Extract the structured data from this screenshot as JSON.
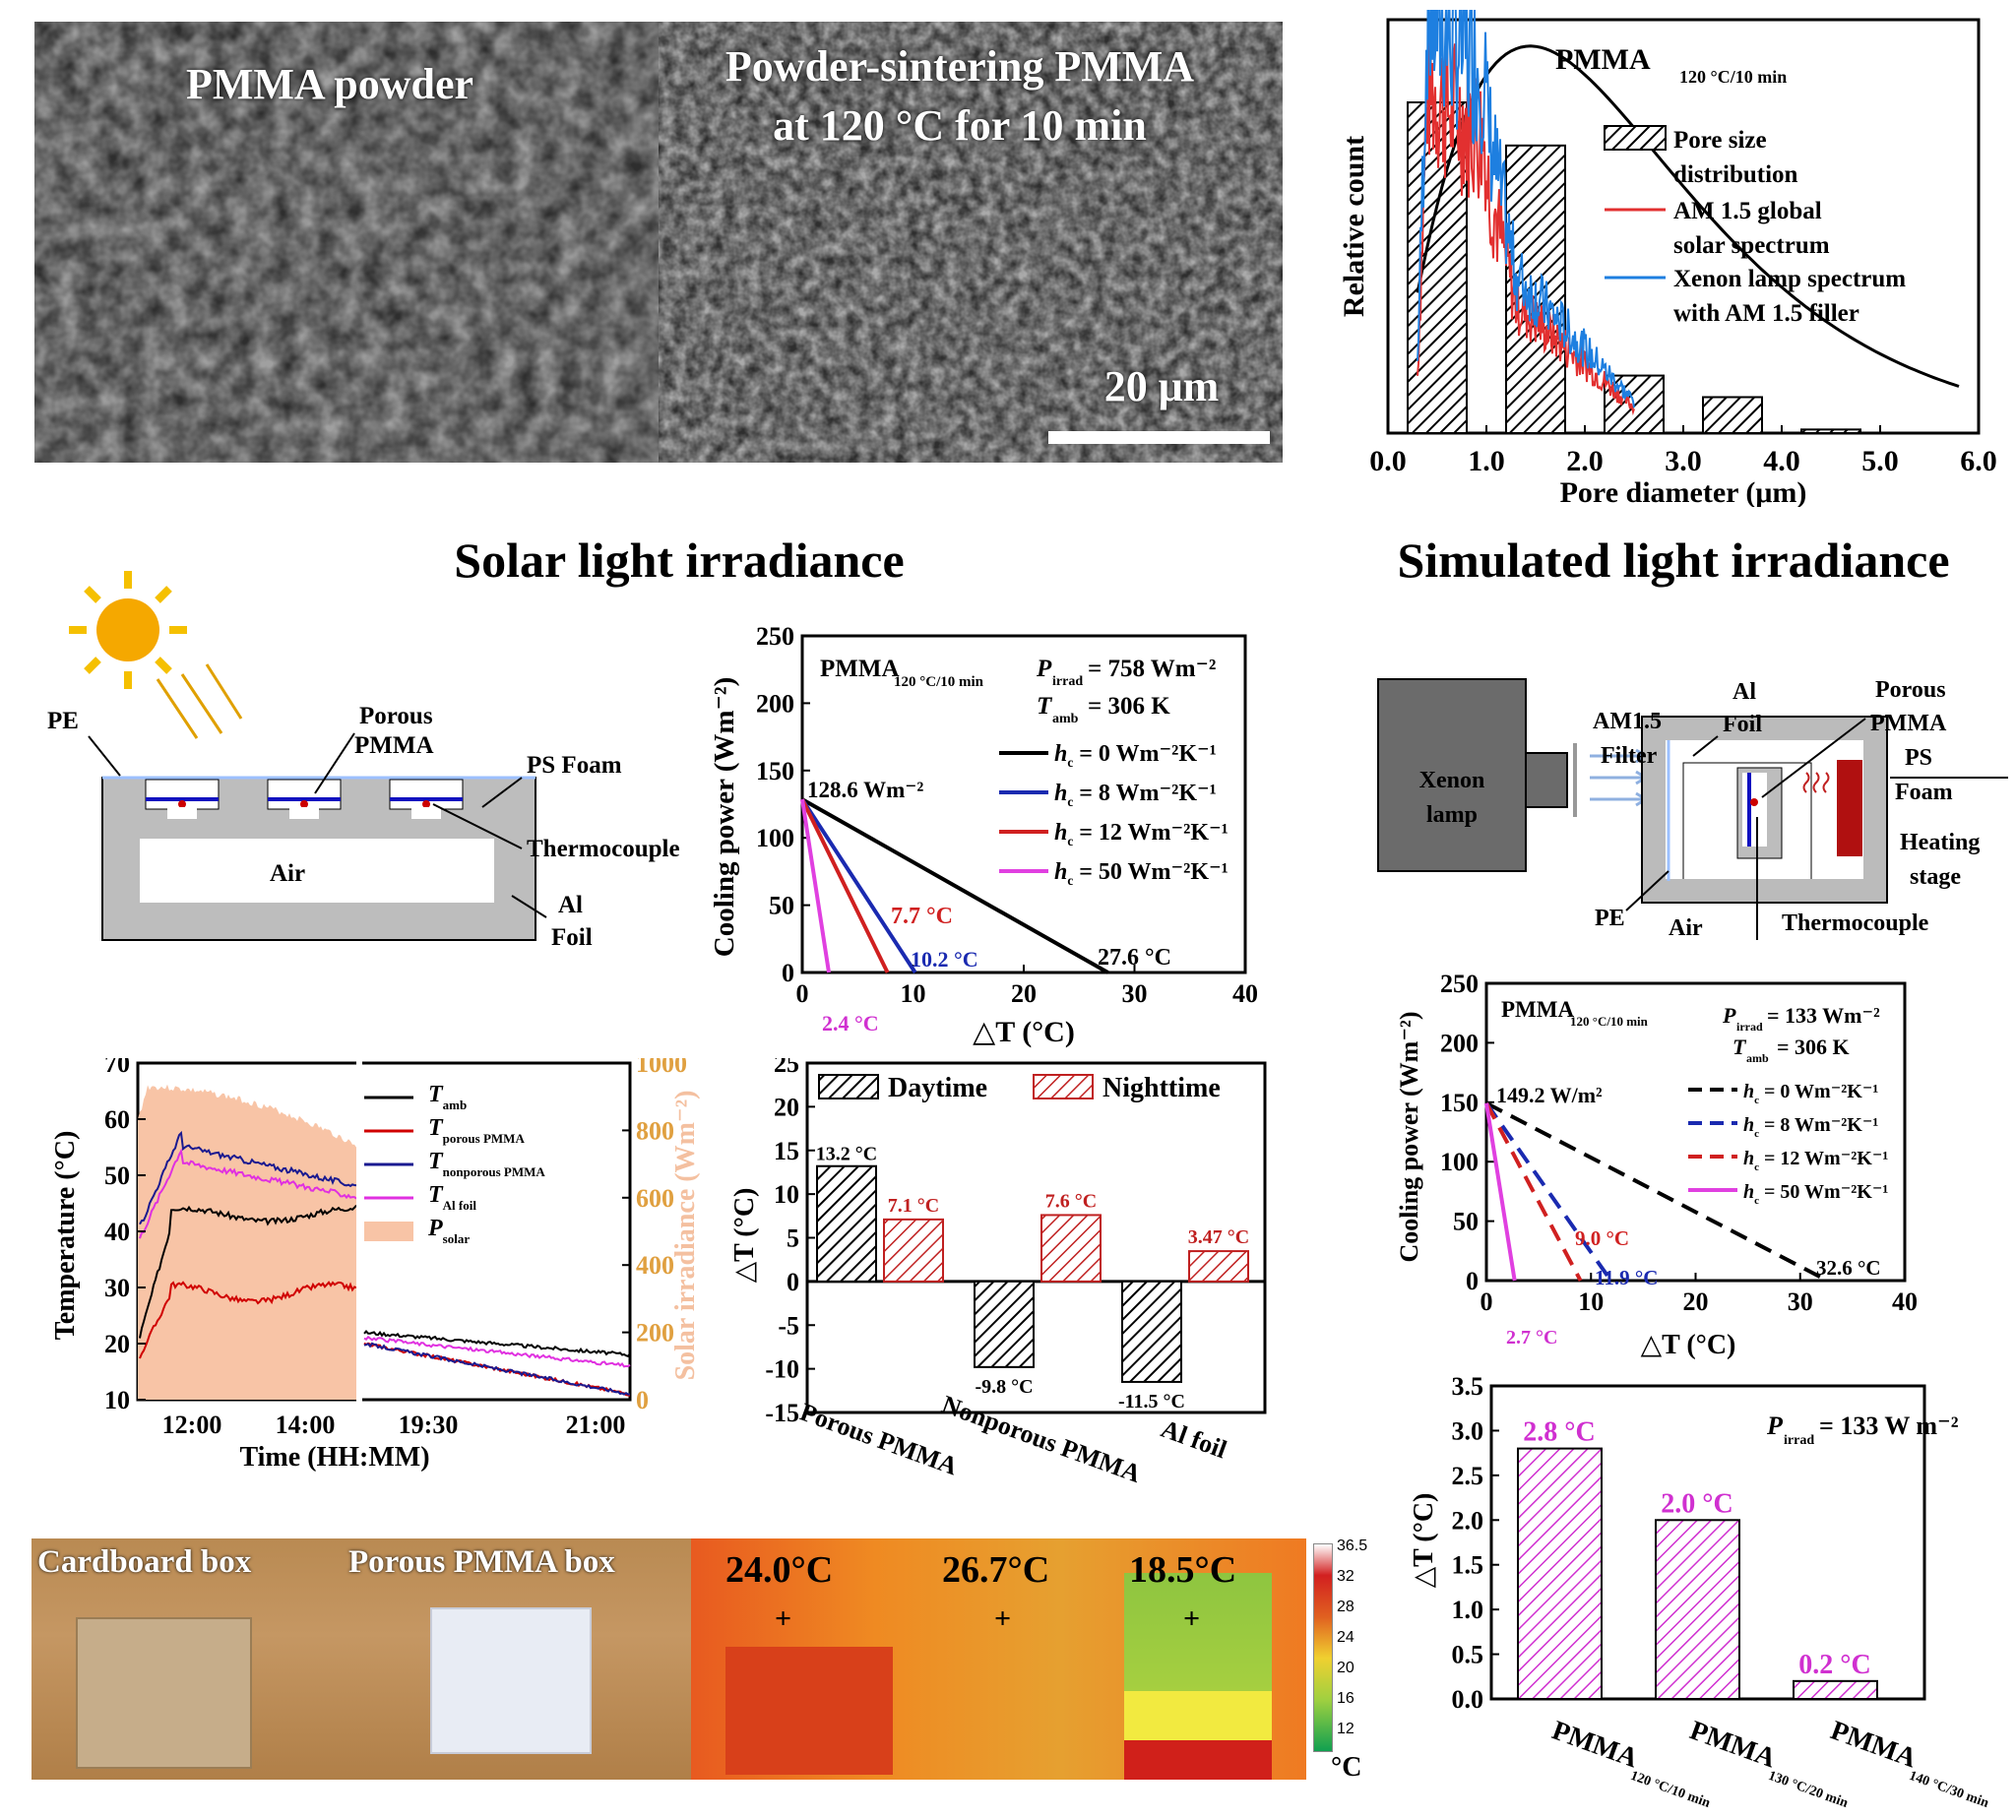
{
  "sem": {
    "left_label": "PMMA powder",
    "right_label_1": "Powder-sintering PMMA",
    "right_label_2": "at 120 °C for 10 min",
    "scale": "20 μm"
  },
  "headings": {
    "solar": "Solar light irradiance",
    "simulated": "Simulated light irradiance"
  },
  "pore_chart": {
    "title_main": "PMMA",
    "title_sub": "120 °C/10 min",
    "ylabel": "Relative count",
    "xlabel": "Pore diameter (μm)",
    "xticks": [
      "0.0",
      "1.0",
      "2.0",
      "3.0",
      "4.0",
      "5.0",
      "6.0"
    ],
    "legend": [
      "Pore size",
      "distribution",
      "AM 1.5 global",
      "solar spectrum",
      "Xenon lamp spectrum",
      "with AM 1.5 filler"
    ],
    "colors": {
      "am15": "#e23030",
      "xenon": "#1e7fe0"
    }
  },
  "solar_schematic": {
    "pe": "PE",
    "porous": "Porous",
    "pmma": "PMMA",
    "ps_foam": "PS Foam",
    "thermocouple": "Thermocouple",
    "air": "Air",
    "al": "Al",
    "foil": "Foil"
  },
  "cooling_solar": {
    "ylabel": "Cooling power (Wm⁻²)",
    "xlabel": "△T (°C)",
    "yticks": [
      "0",
      "50",
      "100",
      "150",
      "200",
      "250"
    ],
    "xticks": [
      "0",
      "10",
      "20",
      "30",
      "40"
    ],
    "sample": "PMMA",
    "sample_sub": "120 °C/10 min",
    "p_irrad": "P",
    "p_irrad_sub": "irrad",
    "p_irrad_val": "= 758 Wm⁻²",
    "t_amb": "T",
    "t_amb_sub": "amb",
    "t_amb_val": "= 306 K",
    "legend": [
      "h_c = 0 Wm⁻²K⁻¹",
      "h_c = 8 Wm⁻²K⁻¹",
      "h_c = 12 Wm⁻²K⁻¹",
      "h_c = 50 Wm⁻²K⁻¹"
    ],
    "peak": "128.6 Wm⁻²",
    "ann": [
      "27.6 °C",
      "10.2 °C",
      "7.7 °C",
      "2.4 °C"
    ]
  },
  "temp_chart": {
    "ylabel": "Temperature (°C)",
    "y2label": "Solar irradiance (Wm⁻²)",
    "xlabel": "Time (HH:MM)",
    "yticks": [
      "10",
      "20",
      "30",
      "40",
      "50",
      "60",
      "70"
    ],
    "y2ticks": [
      "0",
      "200",
      "400",
      "600",
      "800",
      "1000"
    ],
    "xticks": [
      "12:00",
      "14:00",
      "19:30",
      "21:00"
    ],
    "legend": [
      "T",
      "amb",
      "T",
      "porous PMMA",
      "T",
      "nonporous PMMA",
      "T",
      "Al foil",
      "P",
      "solar"
    ]
  },
  "dt_bar": {
    "ylabel": "△T (°C)",
    "yticks": [
      "25",
      "20",
      "15",
      "10",
      "5",
      "0",
      "-5",
      "-10",
      "-15"
    ],
    "legend": [
      "Daytime",
      "Nighttime"
    ],
    "categories": [
      "Porous PMMA",
      "Nonporous PMMA",
      "Al foil"
    ],
    "labels_day": [
      "13.2 °C",
      "-9.8 °C",
      "-11.5 °C"
    ],
    "labels_night": [
      "7.1 °C",
      "7.6 °C",
      "3.47 °C"
    ]
  },
  "sim_schematic": {
    "xenon": "Xenon",
    "lamp": "lamp",
    "am15": "AM1.5",
    "filter": "Filter",
    "al": "Al",
    "foil": "Foil",
    "porous": "Porous",
    "pmma": "PMMA",
    "ps": "PS",
    "foam": "Foam",
    "heating": "Heating",
    "stage": "stage",
    "pe": "PE",
    "air": "Air",
    "thermocouple": "Thermocouple"
  },
  "cooling_sim": {
    "ylabel": "Cooling power (Wm⁻²)",
    "xlabel": "△T (°C)",
    "yticks": [
      "0",
      "50",
      "100",
      "150",
      "200",
      "250"
    ],
    "xticks": [
      "0",
      "10",
      "20",
      "30",
      "40"
    ],
    "sample": "PMMA",
    "sample_sub": "120 °C/10 min",
    "p_irrad": "P",
    "p_irrad_sub": "irrad",
    "p_irrad_val": "= 133 Wm⁻²",
    "t_amb": "T",
    "t_amb_sub": "amb",
    "t_amb_val": "= 306 K",
    "legend": [
      "h_c = 0 Wm⁻²K⁻¹",
      "h_c = 8 Wm⁻²K⁻¹",
      "h_c = 12 Wm⁻²K⁻¹",
      "h_c = 50 Wm⁻²K⁻¹"
    ],
    "peak": "149.2 W/m²",
    "ann": [
      "32.6 °C",
      "11.9 °C",
      "9.0 °C",
      "2.7 °C"
    ]
  },
  "sim_bar": {
    "ylabel": "△T (°C)",
    "yticks": [
      "0.0",
      "0.5",
      "1.0",
      "1.5",
      "2.0",
      "2.5",
      "3.0",
      "3.5"
    ],
    "p_irrad": "P",
    "p_irrad_sub": "irrad",
    "p_irrad_val": "= 133 W m⁻²",
    "labels": [
      "2.8 °C",
      "2.0 °C",
      "0.2 °C"
    ],
    "categories": [
      "PMMA",
      "PMMA",
      "PMMA"
    ],
    "cat_subs": [
      "120 °C/10 min",
      "130 °C/20 min",
      "140 °C/30 min"
    ]
  },
  "photo": {
    "cardboard": "Cardboard box",
    "porous_box": "Porous PMMA box",
    "temps": [
      "24.0°C",
      "26.7°C",
      "18.5°C"
    ],
    "scale_ticks": [
      "36.5",
      "32",
      "28",
      "24",
      "20",
      "16",
      "12"
    ],
    "unit": "°C"
  },
  "chart_data": [
    {
      "type": "bar",
      "title": "",
      "xlabel": "Pore diameter (μm)",
      "ylabel": "Relative count",
      "xlim": [
        0,
        6
      ],
      "categories": [
        "0.5",
        "1.5",
        "2.5",
        "3.5",
        "4.5"
      ],
      "values": [
        0.92,
        0.8,
        0.16,
        0.1,
        0.01
      ]
    },
    {
      "type": "line",
      "title": "",
      "xlabel": "△T (°C)",
      "ylabel": "Cooling power (Wm⁻²)",
      "xlim": [
        0,
        40
      ],
      "ylim": [
        0,
        250
      ],
      "series": [
        {
          "name": "h_c = 0 Wm⁻²K⁻¹",
          "x": [
            0,
            27.6
          ],
          "y": [
            128.6,
            0
          ]
        },
        {
          "name": "h_c = 8 Wm⁻²K⁻¹",
          "x": [
            0,
            10.2
          ],
          "y": [
            128.6,
            0
          ]
        },
        {
          "name": "h_c = 12 Wm⁻²K⁻¹",
          "x": [
            0,
            7.7
          ],
          "y": [
            128.6,
            0
          ]
        },
        {
          "name": "h_c = 50 Wm⁻²K⁻¹",
          "x": [
            0,
            2.4
          ],
          "y": [
            128.6,
            0
          ]
        }
      ]
    },
    {
      "type": "bar",
      "title": "",
      "ylabel": "△T (°C)",
      "ylim": [
        -15,
        25
      ],
      "categories": [
        "Porous PMMA",
        "Nonporous PMMA",
        "Al foil"
      ],
      "series": [
        {
          "name": "Daytime",
          "values": [
            13.2,
            -9.8,
            -11.5
          ]
        },
        {
          "name": "Nighttime",
          "values": [
            7.1,
            7.6,
            3.47
          ]
        }
      ]
    },
    {
      "type": "line",
      "title": "",
      "xlabel": "△T (°C)",
      "ylabel": "Cooling power (Wm⁻²)",
      "xlim": [
        0,
        40
      ],
      "ylim": [
        0,
        250
      ],
      "series": [
        {
          "name": "h_c = 0 Wm⁻²K⁻¹",
          "x": [
            0,
            32.6
          ],
          "y": [
            149.2,
            0
          ]
        },
        {
          "name": "h_c = 8 Wm⁻²K⁻¹",
          "x": [
            0,
            11.9
          ],
          "y": [
            149.2,
            0
          ]
        },
        {
          "name": "h_c = 12 Wm⁻²K⁻¹",
          "x": [
            0,
            9.0
          ],
          "y": [
            149.2,
            0
          ]
        },
        {
          "name": "h_c = 50 Wm⁻²K⁻¹",
          "x": [
            0,
            2.7
          ],
          "y": [
            149.2,
            0
          ]
        }
      ]
    },
    {
      "type": "bar",
      "title": "",
      "ylabel": "△T (°C)",
      "ylim": [
        0,
        3.5
      ],
      "categories": [
        "PMMA 120 °C/10 min",
        "PMMA 130 °C/20 min",
        "PMMA 140 °C/30 min"
      ],
      "values": [
        2.8,
        2.0,
        0.2
      ]
    },
    {
      "type": "line",
      "title": "",
      "xlabel": "Time (HH:MM)",
      "ylabel": "Temperature (°C)",
      "ylim": [
        10,
        70
      ],
      "series": [
        {
          "name": "T amb"
        },
        {
          "name": "T porous PMMA"
        },
        {
          "name": "T nonporous PMMA"
        },
        {
          "name": "T Al foil"
        },
        {
          "name": "P solar"
        }
      ]
    }
  ]
}
